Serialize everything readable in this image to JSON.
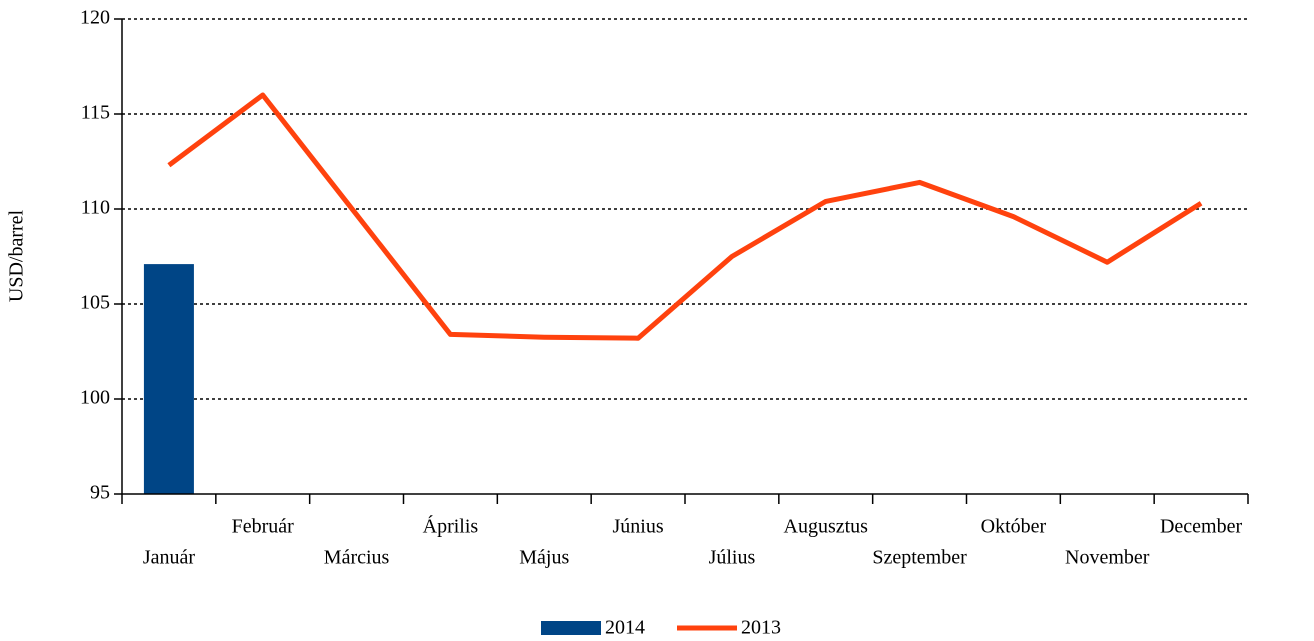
{
  "chart_data": {
    "type": "bar-line",
    "y_label": "USD/barrel",
    "categories": [
      "Január",
      "Február",
      "Március",
      "Április",
      "Május",
      "Június",
      "Július",
      "Augusztus",
      "Szeptember",
      "Október",
      "November",
      "December"
    ],
    "series": [
      {
        "name": "2014",
        "type": "bar",
        "color": "#004586",
        "values": [
          107.1,
          null,
          null,
          null,
          null,
          null,
          null,
          null,
          null,
          null,
          null,
          null
        ]
      },
      {
        "name": "2013",
        "type": "line",
        "color": "#ff420e",
        "values": [
          112.3,
          116.0,
          109.7,
          103.4,
          103.25,
          103.2,
          107.5,
          110.4,
          111.4,
          109.6,
          107.2,
          110.3
        ]
      }
    ],
    "ylim": [
      95,
      120
    ],
    "yticks": [
      95,
      100,
      105,
      110,
      115,
      120
    ],
    "grid": true,
    "legend": "bottom"
  }
}
